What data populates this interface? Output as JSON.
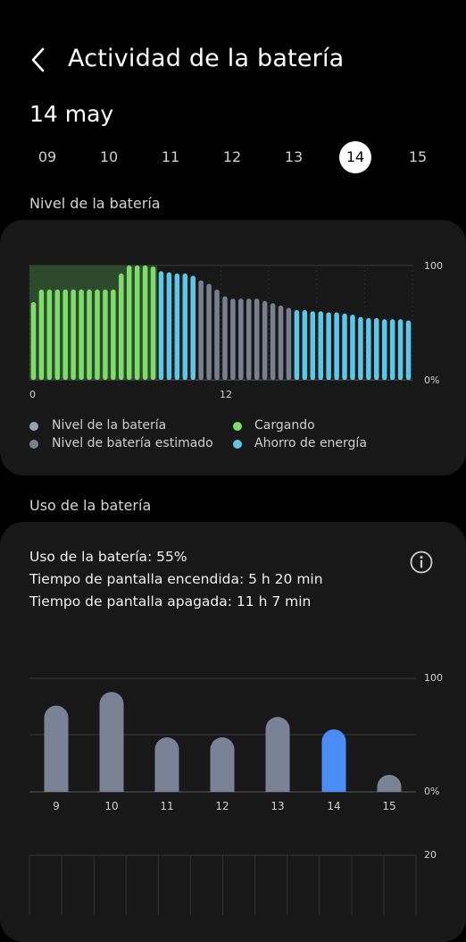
{
  "header": {
    "title": "Actividad de la batería"
  },
  "date_label": "14 may",
  "days": [
    "09",
    "10",
    "11",
    "12",
    "13",
    "14",
    "15"
  ],
  "selected_day": "14",
  "battery_level": {
    "section_title": "Nivel de la batería",
    "colors": {
      "battery": "#9aa0b0",
      "estimated": "#7a7f8f",
      "charging": "#7ddc6a",
      "saving": "#5cc8e8",
      "charging_bg": "#2e4a2c"
    },
    "chart_data": {
      "type": "bar",
      "y_axis_labels": {
        "top": "100",
        "bottom": "0%"
      },
      "x_axis_labels": [
        "0",
        "12"
      ],
      "ylim": [
        0,
        100
      ],
      "x_tick_positions": [
        0,
        12
      ],
      "bar_count": 48,
      "categories_hours_step": 0.5,
      "series": [
        {
          "name": "Cargando",
          "values": [
            68,
            79,
            79,
            79,
            79,
            79,
            79,
            79,
            79,
            79,
            79,
            93,
            100,
            100,
            100,
            99
          ]
        },
        {
          "name": "Ahorro de energía",
          "values": [
            95,
            94,
            93,
            93,
            91
          ]
        },
        {
          "name": "Nivel de batería estimado",
          "values": [
            87,
            84,
            79,
            73,
            71,
            71,
            71,
            71,
            69,
            67,
            65,
            63
          ]
        },
        {
          "name": "Ahorro de energía",
          "values": [
            61,
            61,
            60,
            60,
            59,
            59,
            58,
            57,
            55,
            54,
            54,
            53,
            53,
            53,
            52
          ]
        }
      ]
    },
    "legend": [
      "Nivel de la batería",
      "Nivel de batería estimado",
      "Cargando",
      "Ahorro de energía"
    ]
  },
  "battery_usage": {
    "section_title": "Uso de la batería",
    "usage_text": "Uso de la batería: 55%",
    "screen_on_text": "Tiempo de pantalla encendida: 5 h 20 min",
    "screen_off_text": "Tiempo de pantalla apagada: 11 h 7 min",
    "chart_data": {
      "type": "bar",
      "categories": [
        "9",
        "10",
        "11",
        "12",
        "13",
        "14",
        "15"
      ],
      "values": [
        76,
        88,
        48,
        48,
        66,
        55,
        15
      ],
      "highlight_index": 5,
      "y_axis_labels": {
        "top": "100",
        "bottom": "0%"
      },
      "ylim": [
        0,
        100
      ],
      "colors": {
        "default": "#7a8296",
        "highlight": "#4a8ef5"
      }
    },
    "second_chart_top_label": "20"
  }
}
